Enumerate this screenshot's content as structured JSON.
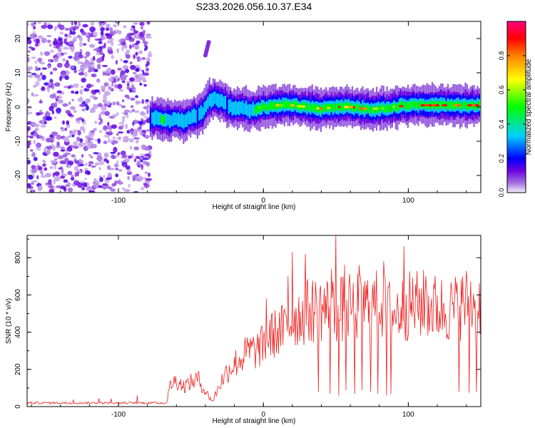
{
  "title": "S233.2026.056.10.37.E34",
  "chart_data": [
    {
      "type": "heatmap",
      "title": "S233.2026.056.10.37.E34",
      "xlabel": "Height of straight line (km)",
      "ylabel": "Frequency (Hz)",
      "xlim": [
        -163,
        150
      ],
      "ylim": [
        -25,
        25
      ],
      "xticks": [
        -100,
        0,
        100
      ],
      "yticks": [
        -20,
        -10,
        0,
        10,
        20
      ],
      "colorbar": {
        "label": "Normalized spectral amplitude",
        "range": [
          0,
          1
        ],
        "ticks": [
          0.0,
          0.2,
          0.4,
          0.6,
          0.8
        ],
        "colormap": [
          "#f4f0fa",
          "#a06ae0",
          "#6a00e0",
          "#0000ff",
          "#00d0ff",
          "#00ff00",
          "#ffff00",
          "#ff8000",
          "#ff0000",
          "#ff0080"
        ]
      },
      "noise_region_x": [
        -163,
        -78
      ],
      "ridge": {
        "x": [
          -78,
          -74,
          -70,
          -65,
          -60,
          -55,
          -50,
          -45,
          -42,
          -38,
          -35,
          -30,
          -25,
          -20,
          -15,
          -10,
          -5,
          0,
          10,
          20,
          30,
          40,
          50,
          60,
          70,
          80,
          90,
          100,
          110,
          120,
          130,
          140,
          150
        ],
        "frequency": [
          -3.5,
          -3.0,
          -4.0,
          -4.0,
          -3.5,
          -4.0,
          -3.0,
          -2.5,
          -1.5,
          1.5,
          2.5,
          2.0,
          0.5,
          -0.5,
          0.0,
          -1.0,
          -0.5,
          0.0,
          0.5,
          0.5,
          0.0,
          -0.5,
          0.0,
          0.0,
          -0.5,
          -0.5,
          0.0,
          0.5,
          0.5,
          0.5,
          0.5,
          0.5,
          0.5
        ],
        "amplitude": [
          0.3,
          0.45,
          0.5,
          0.45,
          0.4,
          0.4,
          0.35,
          0.3,
          0.35,
          0.4,
          0.45,
          0.4,
          0.3,
          0.35,
          0.4,
          0.45,
          0.5,
          0.55,
          0.6,
          0.65,
          0.7,
          0.65,
          0.75,
          0.8,
          0.7,
          0.65,
          0.7,
          0.8,
          0.85,
          0.9,
          0.85,
          0.9,
          0.85
        ]
      },
      "blob": {
        "x": -40,
        "frequency_range": [
          15,
          19
        ]
      }
    },
    {
      "type": "line",
      "xlabel": "Height of straight line (km)",
      "ylabel": "SNR (10 * v/v)",
      "xlim": [
        -163,
        150
      ],
      "ylim": [
        0,
        920
      ],
      "xticks": [
        -100,
        0,
        100
      ],
      "yticks": [
        0,
        200,
        400,
        600,
        800
      ],
      "color": "#ee2020",
      "envelope": {
        "x": [
          -163,
          -140,
          -120,
          -100,
          -80,
          -67,
          -64,
          -60,
          -55,
          -50,
          -45,
          -40,
          -35,
          -30,
          -25,
          -20,
          -15,
          -10,
          -5,
          0,
          5,
          10,
          15,
          20,
          30,
          40,
          50,
          60,
          70,
          80,
          90,
          100,
          110,
          120,
          130,
          140,
          150
        ],
        "snr": [
          20,
          20,
          20,
          20,
          20,
          20,
          120,
          140,
          110,
          130,
          150,
          80,
          30,
          120,
          190,
          230,
          260,
          300,
          300,
          330,
          380,
          400,
          420,
          470,
          510,
          530,
          520,
          530,
          540,
          550,
          500,
          540,
          550,
          530,
          520,
          560,
          560
        ]
      },
      "spikes": [
        {
          "x": 2,
          "snr": 580
        },
        {
          "x": 17,
          "snr": 700
        },
        {
          "x": 20,
          "snr": 830
        },
        {
          "x": 29,
          "snr": 820
        },
        {
          "x": 47,
          "snr": 740
        },
        {
          "x": 50,
          "snr": 920
        },
        {
          "x": 56,
          "snr": 760
        },
        {
          "x": 66,
          "snr": 760
        },
        {
          "x": 83,
          "snr": 780
        },
        {
          "x": 97,
          "snr": 860
        },
        {
          "x": 112,
          "snr": 700
        }
      ],
      "dropouts": [
        {
          "x": 38,
          "snr": 80
        },
        {
          "x": 46,
          "snr": 70
        },
        {
          "x": 52,
          "snr": 60
        },
        {
          "x": 57,
          "snr": 90
        },
        {
          "x": 63,
          "snr": 70
        },
        {
          "x": 68,
          "snr": 90
        },
        {
          "x": 74,
          "snr": 80
        },
        {
          "x": 79,
          "snr": 70
        },
        {
          "x": 85,
          "snr": 60
        },
        {
          "x": 88,
          "snr": 70
        },
        {
          "x": 135,
          "snr": 80
        },
        {
          "x": 142,
          "snr": 75
        },
        {
          "x": 147,
          "snr": 80
        }
      ]
    }
  ]
}
